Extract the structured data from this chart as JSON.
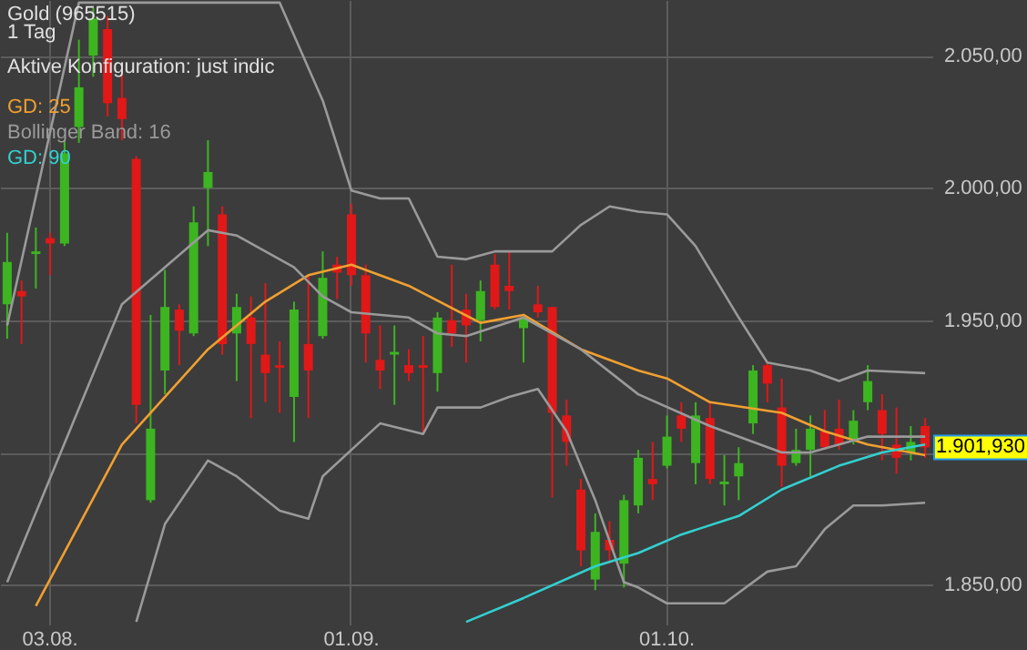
{
  "chart_data": {
    "type": "candlestick",
    "title": "Gold (965515)",
    "subtitle": "1 Tag",
    "annotations": [
      "Aktive Konfiguration: just indic",
      "1.901,930"
    ],
    "categories": [
      null,
      null,
      null,
      "03.08.",
      null,
      null,
      null,
      null,
      null,
      null,
      null,
      null,
      null,
      null,
      null,
      null,
      null,
      null,
      null,
      null,
      null,
      null,
      null,
      null,
      "01.09.",
      null,
      null,
      null,
      null,
      null,
      null,
      null,
      null,
      null,
      null,
      null,
      null,
      null,
      null,
      null,
      null,
      null,
      null,
      null,
      null,
      null,
      "01.10.",
      null,
      null,
      null,
      null,
      null,
      null,
      null,
      null,
      null,
      null,
      null,
      null,
      null,
      null,
      null,
      null,
      null,
      null
    ],
    "ohlc": [
      [
        1956,
        1983,
        1943,
        1972
      ],
      [
        1961,
        1965,
        1941,
        1959
      ],
      [
        1975,
        1985,
        1962,
        1976
      ],
      [
        1981,
        1983,
        1967,
        1979
      ],
      [
        1979,
        2018,
        1978,
        2013
      ],
      [
        2023,
        2056,
        2017,
        2038
      ],
      [
        2050,
        2068,
        2042,
        2064
      ],
      [
        2060,
        2065,
        2027,
        2032
      ],
      [
        2034,
        2044,
        2018,
        2026
      ],
      [
        2011,
        2012,
        1911,
        1918
      ],
      [
        1882,
        1952,
        1881,
        1909
      ],
      [
        1931,
        1969,
        1922,
        1955
      ],
      [
        1954,
        1956,
        1933,
        1946
      ],
      [
        1945,
        1993,
        1944,
        1987
      ],
      [
        2000,
        2018,
        1978,
        2006
      ],
      [
        1990,
        1993,
        1937,
        1941
      ],
      [
        1945,
        1960,
        1927,
        1955
      ],
      [
        1951,
        1959,
        1913,
        1941
      ],
      [
        1937,
        1964,
        1919,
        1930
      ],
      [
        1933,
        1942,
        1915,
        1932
      ],
      [
        1921,
        1957,
        1904,
        1954
      ],
      [
        1941,
        1967,
        1913,
        1931
      ],
      [
        1944,
        1976,
        1943,
        1966
      ],
      [
        1971,
        1974,
        1958,
        1968
      ],
      [
        1990,
        1994,
        1963,
        1967
      ],
      [
        1967,
        1971,
        1934,
        1945
      ],
      [
        1935,
        1948,
        1924,
        1931
      ],
      [
        1937,
        1948,
        1918,
        1938
      ],
      [
        1933,
        1939,
        1927,
        1930
      ],
      [
        1933,
        1944,
        1907,
        1932
      ],
      [
        1930,
        1953,
        1923,
        1951
      ],
      [
        1950,
        1971,
        1940,
        1945
      ],
      [
        1954,
        1960,
        1934,
        1948
      ],
      [
        1950,
        1965,
        1942,
        1961
      ],
      [
        1971,
        1975,
        1954,
        1955
      ],
      [
        1963,
        1976,
        1954,
        1961
      ],
      [
        1947,
        1951,
        1934,
        1951
      ],
      [
        1956,
        1963,
        1951,
        1953
      ],
      [
        1955,
        1955,
        1883,
        1915
      ],
      [
        1914,
        1920,
        1895,
        1904
      ],
      [
        1886,
        1890,
        1857,
        1863
      ],
      [
        1852,
        1877,
        1848,
        1870
      ],
      [
        1867,
        1874,
        1858,
        1863
      ],
      [
        1858,
        1884,
        1849,
        1882
      ],
      [
        1880,
        1901,
        1877,
        1898
      ],
      [
        1890,
        1904,
        1882,
        1888
      ],
      [
        1895,
        1914,
        1894,
        1906
      ],
      [
        1914,
        1919,
        1904,
        1909
      ],
      [
        1896,
        1919,
        1888,
        1914
      ],
      [
        1913,
        1919,
        1888,
        1890
      ],
      [
        1888,
        1899,
        1880,
        1889
      ],
      [
        1891,
        1902,
        1882,
        1896
      ],
      [
        1911,
        1933,
        1907,
        1931
      ],
      [
        1933,
        1934,
        1919,
        1926
      ],
      [
        1917,
        1928,
        1887,
        1895
      ],
      [
        1896,
        1909,
        1895,
        1901
      ],
      [
        1901,
        1914,
        1891,
        1909
      ],
      [
        1908,
        1916,
        1901,
        1902
      ],
      [
        1909,
        1920,
        1901,
        1903
      ],
      [
        1905,
        1916,
        1903,
        1912
      ],
      [
        1919,
        1933,
        1916,
        1927
      ],
      [
        1916,
        1922,
        1897,
        1907
      ],
      [
        1903,
        1917,
        1892,
        1898
      ],
      [
        1900,
        1910,
        1897,
        1904
      ],
      [
        1910,
        1913,
        1898,
        1901.93
      ]
    ],
    "series": [
      {
        "name": "GD: 25",
        "type": "line",
        "color": "#f0a030",
        "values": [
          null,
          null,
          1842,
          null,
          null,
          null,
          null,
          null,
          1903,
          null,
          null,
          null,
          null,
          null,
          1939,
          null,
          null,
          null,
          1957,
          null,
          null,
          1967,
          null,
          null,
          1971,
          null,
          null,
          null,
          1963,
          null,
          null,
          null,
          null,
          1949,
          null,
          null,
          1952,
          null,
          null,
          null,
          1939,
          null,
          null,
          null,
          1931,
          null,
          1928,
          null,
          null,
          1919,
          null,
          null,
          null,
          null,
          1915,
          null,
          null,
          1908,
          null,
          null,
          1903,
          null,
          null,
          null,
          1899
        ]
      },
      {
        "name": "Bollinger Band: 16",
        "type": "line",
        "color": "#9a9a9a",
        "values": [
          1851,
          null,
          null,
          null,
          null,
          null,
          null,
          null,
          1956,
          null,
          null,
          null,
          null,
          null,
          1984,
          null,
          1982,
          null,
          null,
          null,
          1970,
          null,
          1959,
          null,
          1953,
          null,
          null,
          null,
          1951,
          null,
          1945,
          null,
          1944,
          null,
          null,
          null,
          1951,
          null,
          null,
          null,
          1939,
          null,
          null,
          null,
          1922,
          null,
          null,
          null,
          null,
          1910,
          null,
          null,
          null,
          null,
          1900,
          null,
          1900,
          null,
          null,
          null,
          1906,
          null,
          null,
          null,
          1906
        ]
      },
      {
        "type": "line",
        "color": "#9a9a9a",
        "values": [
          1948,
          null,
          null,
          null,
          null,
          2070,
          null,
          null,
          null,
          null,
          null,
          null,
          null,
          null,
          null,
          null,
          null,
          null,
          null,
          2070,
          null,
          null,
          2033,
          null,
          1999,
          null,
          1996,
          null,
          1996,
          null,
          1974,
          null,
          1973,
          null,
          1976,
          null,
          null,
          null,
          1976,
          null,
          1986,
          null,
          1993,
          null,
          1991,
          null,
          1990,
          null,
          1978,
          null,
          null,
          1951,
          null,
          1934,
          null,
          null,
          1931,
          null,
          1927,
          null,
          1931,
          null,
          null,
          null,
          1930
        ]
      },
      {
        "type": "line",
        "color": "#9a9a9a",
        "values": [
          null,
          null,
          null,
          null,
          null,
          null,
          null,
          null,
          null,
          1836,
          null,
          1873,
          null,
          null,
          1897,
          null,
          1891,
          null,
          null,
          1878,
          null,
          1875,
          1891,
          null,
          1901,
          null,
          1911,
          null,
          null,
          1907,
          1917,
          null,
          null,
          1917,
          null,
          1921,
          null,
          1924,
          null,
          1908,
          null,
          1882,
          null,
          1851,
          1849,
          null,
          1843,
          null,
          null,
          null,
          1843,
          null,
          null,
          1855,
          null,
          1857,
          null,
          1871,
          null,
          1880,
          null,
          1880,
          null,
          null,
          1881
        ]
      },
      {
        "name": "GD: 90",
        "type": "line",
        "color": "#33d0d0",
        "values": [
          null,
          null,
          null,
          null,
          null,
          null,
          null,
          null,
          null,
          null,
          null,
          null,
          null,
          null,
          null,
          null,
          null,
          null,
          null,
          null,
          null,
          null,
          null,
          null,
          null,
          null,
          null,
          null,
          null,
          null,
          null,
          null,
          1836,
          null,
          null,
          null,
          1845,
          null,
          null,
          null,
          null,
          1857,
          null,
          null,
          1862,
          null,
          null,
          1869,
          null,
          null,
          null,
          1876,
          null,
          null,
          1886,
          null,
          null,
          null,
          1895,
          null,
          null,
          1900,
          null,
          null,
          1903
        ]
      }
    ],
    "ylim": [
      1835,
      2071
    ],
    "yticks": [
      {
        "value": 1850,
        "label": "1.850,00"
      },
      {
        "value": 1900,
        "label": null
      },
      {
        "value": 1950,
        "label": "1.950,00"
      },
      {
        "value": 2000,
        "label": "2.000,00"
      },
      {
        "value": 2050,
        "label": "2.050,00"
      }
    ],
    "grid": true,
    "legend": "top left"
  }
}
